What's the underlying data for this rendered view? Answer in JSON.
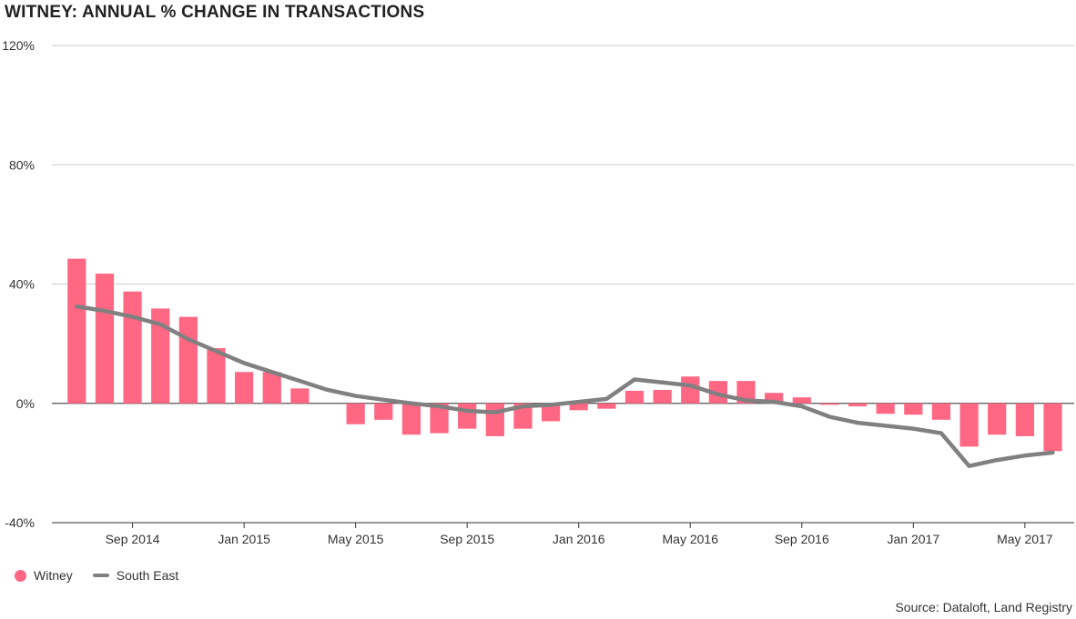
{
  "chart_data": {
    "type": "bar",
    "title": "WITNEY: ANNUAL % CHANGE IN TRANSACTIONS",
    "source": "Source: Dataloft, Land Registry",
    "y_ticks": [
      "120%",
      "80%",
      "40%",
      "0%",
      "-40%"
    ],
    "y_tick_values": [
      120,
      80,
      40,
      0,
      -40
    ],
    "ylim": [
      -40,
      120
    ],
    "x_tick_labels": [
      "Sep 2014",
      "Jan 2015",
      "May 2015",
      "Sep 2015",
      "Jan 2016",
      "May 2016",
      "Sep 2016",
      "Jan 2017",
      "May 2017"
    ],
    "x_tick_months": [
      "2014-09",
      "2015-01",
      "2015-05",
      "2015-09",
      "2016-01",
      "2016-05",
      "2016-09",
      "2017-01",
      "2017-05"
    ],
    "categories": [
      "2014-07",
      "2014-08",
      "2014-09",
      "2014-10",
      "2014-11",
      "2014-12",
      "2015-01",
      "2015-02",
      "2015-03",
      "2015-04",
      "2015-05",
      "2015-06",
      "2015-07",
      "2015-08",
      "2015-09",
      "2015-10",
      "2015-11",
      "2015-12",
      "2016-01",
      "2016-02",
      "2016-03",
      "2016-04",
      "2016-05",
      "2016-06",
      "2016-07",
      "2016-08",
      "2016-09",
      "2016-10",
      "2016-11",
      "2016-12",
      "2017-01",
      "2017-02",
      "2017-03",
      "2017-04",
      "2017-05",
      "2017-06"
    ],
    "series": [
      {
        "name": "Witney",
        "kind": "bar",
        "color": "#ff6783",
        "values": [
          48.5,
          43.5,
          37.5,
          31.8,
          29,
          18.5,
          10.5,
          10.5,
          5,
          null,
          -7,
          -5.5,
          -10.5,
          -10,
          -8.5,
          -11,
          -8.5,
          -6,
          -2.3,
          -1.8,
          4.2,
          4.5,
          9,
          7.5,
          7.5,
          3.5,
          2,
          -0.5,
          -1,
          -3.5,
          -3.8,
          -5.5,
          -14.5,
          -10.5,
          -11,
          -16
        ]
      },
      {
        "name": "South East",
        "kind": "line",
        "color": "#808080",
        "values": [
          32.5,
          31,
          29,
          26.5,
          21.5,
          17.5,
          13.5,
          10.5,
          7.5,
          4.5,
          2.5,
          1.2,
          0,
          -1,
          -2.5,
          -3,
          -1,
          -0.5,
          0.5,
          1.5,
          8,
          7,
          6,
          3,
          1,
          0.5,
          -1,
          -4.5,
          -6.5,
          -7.5,
          -8.5,
          -10,
          -21,
          -19,
          -17.5,
          -16.5
        ]
      }
    ],
    "grid": true,
    "legend_position": "bottom-left"
  }
}
